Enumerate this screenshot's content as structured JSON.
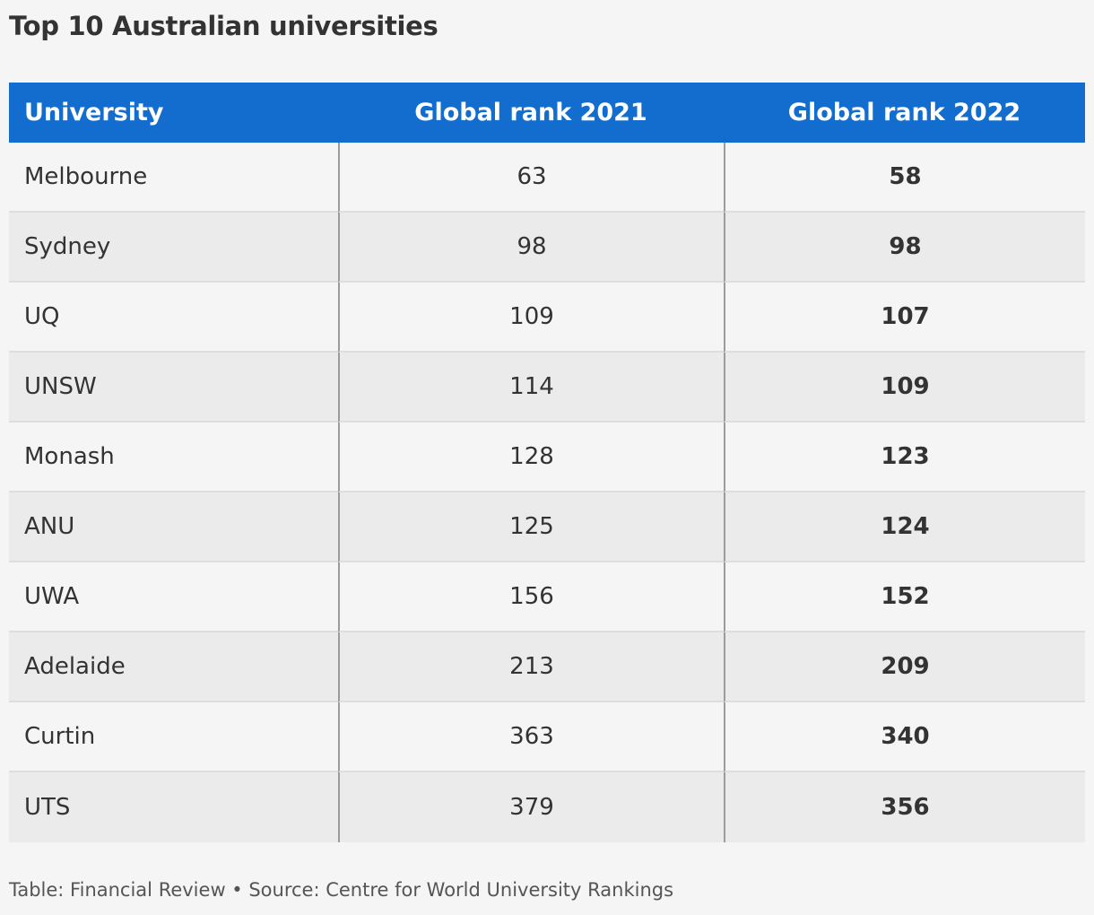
{
  "title": "Top 10 Australian universities",
  "footer": "Table: Financial Review • Source: Centre for World University Rankings",
  "colors": {
    "header_bg": "#126dce",
    "header_text": "#ffffff",
    "row_odd": "#f5f5f5",
    "row_even": "#ebebeb",
    "text": "#333333"
  },
  "chart_data": {
    "type": "table",
    "title": "Top 10 Australian universities",
    "columns": [
      "University",
      "Global rank 2021",
      "Global rank 2022"
    ],
    "rows": [
      [
        "Melbourne",
        "63",
        "58"
      ],
      [
        "Sydney",
        "98",
        "98"
      ],
      [
        "UQ",
        "109",
        "107"
      ],
      [
        "UNSW",
        "114",
        "109"
      ],
      [
        "Monash",
        "128",
        "123"
      ],
      [
        "ANU",
        "125",
        "124"
      ],
      [
        "UWA",
        "156",
        "152"
      ],
      [
        "Adelaide",
        "213",
        "209"
      ],
      [
        "Curtin",
        "363",
        "340"
      ],
      [
        "UTS",
        "379",
        "356"
      ]
    ]
  }
}
